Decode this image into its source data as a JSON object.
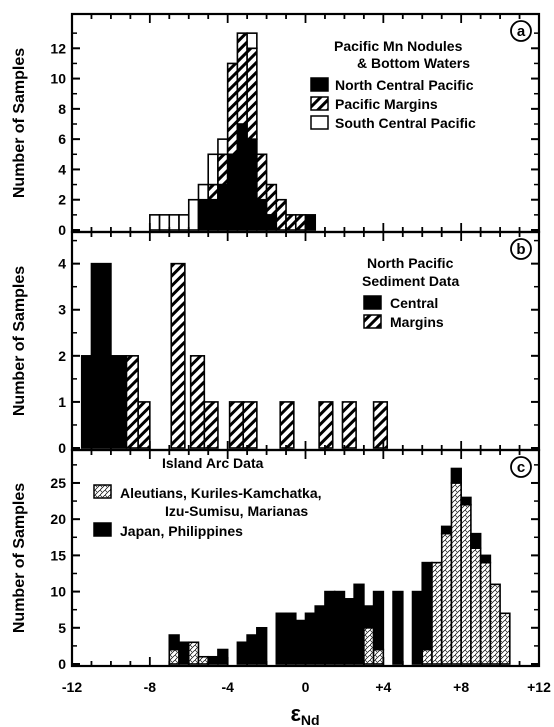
{
  "xaxis": {
    "label_main": "ε",
    "label_sub": "Nd",
    "ticks": [
      -12,
      -8,
      -4,
      0,
      4,
      8,
      12
    ],
    "tick_labels": [
      "-12",
      "-8",
      "-4",
      "0",
      "+4",
      "+8",
      "+12"
    ],
    "range": [
      -12,
      12
    ]
  },
  "chart_data": [
    {
      "type": "bar",
      "panel_letter": "a",
      "ylabel": "Number of Samples",
      "ylim": [
        0,
        14
      ],
      "yticks": [
        0,
        2,
        4,
        6,
        8,
        10,
        12
      ],
      "legend_title": [
        "Pacific Mn Nodules",
        "& Bottom Waters"
      ],
      "series": [
        {
          "name": "North Central Pacific",
          "fill": "solid"
        },
        {
          "name": "Pacific Margins",
          "fill": "hatch"
        },
        {
          "name": "South Central Pacific",
          "fill": "open"
        }
      ],
      "bin_width": 0.5,
      "bars": [
        {
          "x0": -8.0,
          "values": [
            0,
            0,
            1
          ]
        },
        {
          "x0": -7.5,
          "values": [
            0,
            0,
            1
          ]
        },
        {
          "x0": -7.0,
          "values": [
            0,
            0,
            1
          ]
        },
        {
          "x0": -6.5,
          "values": [
            0,
            0,
            1
          ]
        },
        {
          "x0": -6.0,
          "values": [
            0,
            0,
            2
          ]
        },
        {
          "x0": -5.5,
          "values": [
            2,
            0,
            1
          ]
        },
        {
          "x0": -5.0,
          "values": [
            2,
            1,
            2
          ]
        },
        {
          "x0": -4.5,
          "values": [
            3,
            2,
            1
          ]
        },
        {
          "x0": -4.0,
          "values": [
            5,
            6,
            0
          ]
        },
        {
          "x0": -3.5,
          "values": [
            7,
            6,
            0
          ]
        },
        {
          "x0": -3.0,
          "values": [
            6,
            6,
            1
          ]
        },
        {
          "x0": -2.5,
          "values": [
            2,
            3,
            0
          ]
        },
        {
          "x0": -2.0,
          "values": [
            1,
            2,
            0
          ]
        },
        {
          "x0": -1.5,
          "values": [
            0,
            2,
            0
          ]
        },
        {
          "x0": -1.0,
          "values": [
            0,
            1,
            0
          ]
        },
        {
          "x0": -0.5,
          "values": [
            0,
            1,
            0
          ]
        },
        {
          "x0": 0.0,
          "values": [
            1,
            0,
            0
          ]
        }
      ]
    },
    {
      "type": "bar",
      "panel_letter": "b",
      "ylabel": "Number of Samples",
      "ylim": [
        0,
        4.6
      ],
      "yticks": [
        0,
        1,
        2,
        3,
        4
      ],
      "legend_title": [
        "North Pacific",
        "Sediment Data"
      ],
      "series": [
        {
          "name": "Central",
          "fill": "solid"
        },
        {
          "name": "Margins",
          "fill": "hatch"
        }
      ],
      "bars": [
        {
          "x0": -11.5,
          "x1": -11.0,
          "values": [
            2,
            0
          ]
        },
        {
          "x0": -11.0,
          "x1": -10.0,
          "values": [
            4,
            0
          ]
        },
        {
          "x0": -10.0,
          "x1": -9.2,
          "values": [
            2,
            0
          ]
        },
        {
          "x0": -9.2,
          "x1": -8.6,
          "values": [
            0,
            2
          ]
        },
        {
          "x0": -8.6,
          "x1": -8.0,
          "values": [
            0,
            1
          ]
        },
        {
          "x0": -6.9,
          "x1": -6.2,
          "values": [
            0,
            4
          ]
        },
        {
          "x0": -5.9,
          "x1": -5.2,
          "values": [
            0,
            2
          ]
        },
        {
          "x0": -5.2,
          "x1": -4.5,
          "values": [
            0,
            1
          ]
        },
        {
          "x0": -3.9,
          "x1": -3.2,
          "values": [
            0,
            1
          ]
        },
        {
          "x0": -3.2,
          "x1": -2.5,
          "values": [
            0,
            1
          ]
        },
        {
          "x0": -1.3,
          "x1": -0.6,
          "values": [
            0,
            1
          ]
        },
        {
          "x0": 0.7,
          "x1": 1.4,
          "values": [
            0,
            1
          ]
        },
        {
          "x0": 1.9,
          "x1": 2.6,
          "values": [
            0,
            1
          ]
        },
        {
          "x0": 3.5,
          "x1": 4.2,
          "values": [
            0,
            1
          ]
        }
      ]
    },
    {
      "type": "bar",
      "panel_letter": "c",
      "ylabel": "Number of Samples",
      "ylim": [
        0,
        29
      ],
      "yticks": [
        0,
        5,
        10,
        15,
        20,
        25
      ],
      "legend_title": [
        "Island Arc Data"
      ],
      "series": [
        {
          "name": "Aleutians, Kuriles-Kamchatka, Izu-Sumisu, Marianas",
          "fill": "dotted"
        },
        {
          "name": "Japan, Philippines",
          "fill": "solid"
        }
      ],
      "legend_lines": [
        "Aleutians, Kuriles-Kamchatka,",
        "Izu-Sumisu, Marianas"
      ],
      "bin_width": 0.5,
      "bars": [
        {
          "x0": -7.0,
          "values": [
            2,
            2
          ]
        },
        {
          "x0": -6.5,
          "values": [
            0,
            3
          ]
        },
        {
          "x0": -6.0,
          "values": [
            3,
            0
          ]
        },
        {
          "x0": -5.5,
          "values": [
            1,
            0
          ]
        },
        {
          "x0": -5.0,
          "values": [
            0,
            1
          ]
        },
        {
          "x0": -4.5,
          "values": [
            0,
            2
          ]
        },
        {
          "x0": -4.0,
          "values": [
            0,
            0
          ]
        },
        {
          "x0": -3.5,
          "values": [
            0,
            3
          ]
        },
        {
          "x0": -3.0,
          "values": [
            0,
            4
          ]
        },
        {
          "x0": -2.5,
          "values": [
            0,
            5
          ]
        },
        {
          "x0": -2.0,
          "values": [
            0,
            0
          ]
        },
        {
          "x0": -1.5,
          "values": [
            0,
            7
          ]
        },
        {
          "x0": -1.0,
          "values": [
            0,
            7
          ]
        },
        {
          "x0": -0.5,
          "values": [
            0,
            6
          ]
        },
        {
          "x0": 0.0,
          "values": [
            0,
            7
          ]
        },
        {
          "x0": 0.5,
          "values": [
            0,
            8
          ]
        },
        {
          "x0": 1.0,
          "values": [
            0,
            10
          ]
        },
        {
          "x0": 1.5,
          "values": [
            0,
            10
          ]
        },
        {
          "x0": 2.0,
          "values": [
            0,
            9
          ]
        },
        {
          "x0": 2.5,
          "values": [
            0,
            11
          ]
        },
        {
          "x0": 3.0,
          "values": [
            5,
            3
          ]
        },
        {
          "x0": 3.5,
          "values": [
            2,
            8
          ]
        },
        {
          "x0": 4.0,
          "values": [
            0,
            0
          ]
        },
        {
          "x0": 4.5,
          "values": [
            0,
            10
          ]
        },
        {
          "x0": 5.0,
          "values": [
            0,
            0
          ]
        },
        {
          "x0": 5.5,
          "values": [
            0,
            10
          ]
        },
        {
          "x0": 6.0,
          "values": [
            2,
            12
          ]
        },
        {
          "x0": 6.5,
          "values": [
            14,
            0
          ]
        },
        {
          "x0": 7.0,
          "values": [
            18,
            1
          ]
        },
        {
          "x0": 7.5,
          "values": [
            25,
            2
          ]
        },
        {
          "x0": 8.0,
          "values": [
            22,
            1
          ]
        },
        {
          "x0": 8.5,
          "values": [
            16,
            2
          ]
        },
        {
          "x0": 9.0,
          "values": [
            14,
            1
          ]
        },
        {
          "x0": 9.5,
          "values": [
            11,
            0
          ]
        },
        {
          "x0": 10.0,
          "values": [
            7,
            0
          ]
        }
      ]
    }
  ]
}
